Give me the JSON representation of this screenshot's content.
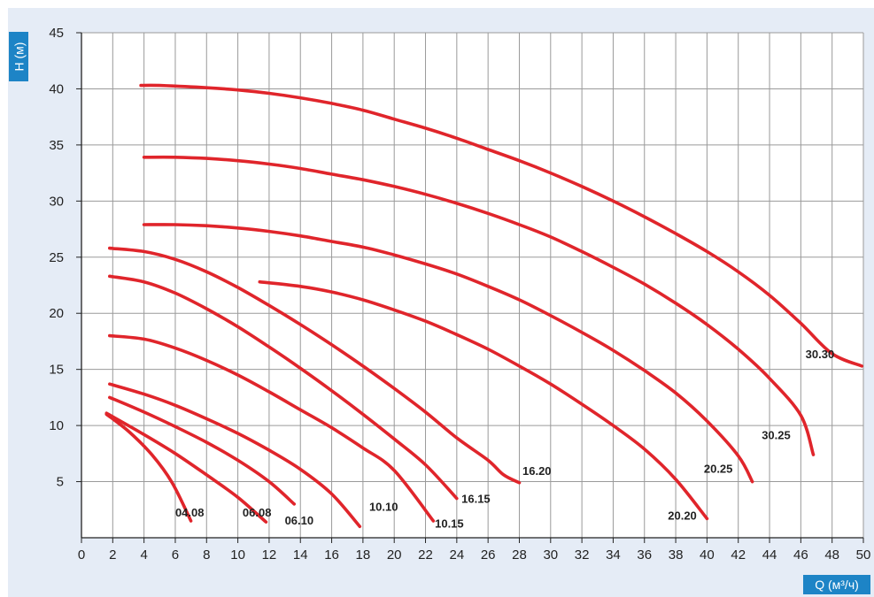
{
  "chart_data": {
    "type": "line",
    "xlabel": "Q (м³/ч)",
    "ylabel": "H (м)",
    "xlim": [
      0,
      50
    ],
    "ylim": [
      0,
      45
    ],
    "xticks": [
      "0",
      "2",
      "4",
      "6",
      "8",
      "10",
      "12",
      "14",
      "16",
      "18",
      "20",
      "22",
      "24",
      "26",
      "28",
      "30",
      "32",
      "34",
      "36",
      "38",
      "40",
      "42",
      "44",
      "46",
      "48",
      "50"
    ],
    "yticks": [
      "5",
      "10",
      "15",
      "20",
      "25",
      "30",
      "35",
      "40",
      "45"
    ],
    "grid": true,
    "line_color": "#e0252b",
    "series": [
      {
        "name": "04.08",
        "points": [
          [
            1.6,
            11.0
          ],
          [
            3.0,
            9.5
          ],
          [
            4.5,
            7.4
          ],
          [
            5.8,
            4.9
          ],
          [
            7.0,
            1.5
          ]
        ],
        "label_at": [
          6.0,
          1.9
        ]
      },
      {
        "name": "06.08",
        "points": [
          [
            1.6,
            11.1
          ],
          [
            4.0,
            9.2
          ],
          [
            6.0,
            7.5
          ],
          [
            8.0,
            5.6
          ],
          [
            10.0,
            3.6
          ],
          [
            11.8,
            1.4
          ]
        ],
        "label_at": [
          10.3,
          1.9
        ]
      },
      {
        "name": "06.10",
        "points": [
          [
            1.8,
            12.5
          ],
          [
            4.0,
            11.2
          ],
          [
            6.0,
            9.9
          ],
          [
            8.0,
            8.5
          ],
          [
            10.0,
            6.9
          ],
          [
            12.0,
            5.0
          ],
          [
            13.6,
            3.0
          ]
        ],
        "label_at": [
          13.0,
          1.2
        ]
      },
      {
        "name": "10.10",
        "points": [
          [
            1.8,
            13.7
          ],
          [
            4.0,
            12.8
          ],
          [
            6.0,
            11.8
          ],
          [
            8.0,
            10.6
          ],
          [
            10.0,
            9.3
          ],
          [
            12.0,
            7.8
          ],
          [
            14.0,
            6.1
          ],
          [
            16.0,
            3.9
          ],
          [
            17.8,
            1.0
          ]
        ],
        "label_at": [
          18.4,
          2.4
        ]
      },
      {
        "name": "10.15",
        "points": [
          [
            1.8,
            18.0
          ],
          [
            4.0,
            17.7
          ],
          [
            6.0,
            16.9
          ],
          [
            8.0,
            15.8
          ],
          [
            10.0,
            14.5
          ],
          [
            12.0,
            13.0
          ],
          [
            14.0,
            11.4
          ],
          [
            16.0,
            9.8
          ],
          [
            18.0,
            8.0
          ],
          [
            20.0,
            6.0
          ],
          [
            22.5,
            1.5
          ]
        ],
        "label_at": [
          22.6,
          0.9
        ]
      },
      {
        "name": "16.15",
        "points": [
          [
            1.8,
            23.3
          ],
          [
            4.0,
            22.8
          ],
          [
            6.0,
            21.8
          ],
          [
            8.0,
            20.4
          ],
          [
            10.0,
            18.8
          ],
          [
            12.0,
            17.0
          ],
          [
            14.0,
            15.1
          ],
          [
            16.0,
            13.1
          ],
          [
            18.0,
            11.0
          ],
          [
            20.0,
            8.8
          ],
          [
            22.0,
            6.5
          ],
          [
            24.0,
            3.5
          ]
        ],
        "label_at": [
          24.3,
          3.1
        ]
      },
      {
        "name": "16.20",
        "points": [
          [
            1.8,
            25.8
          ],
          [
            4.0,
            25.5
          ],
          [
            6.0,
            24.8
          ],
          [
            8.0,
            23.7
          ],
          [
            10.0,
            22.3
          ],
          [
            12.0,
            20.7
          ],
          [
            14.0,
            19.0
          ],
          [
            16.0,
            17.2
          ],
          [
            18.0,
            15.3
          ],
          [
            20.0,
            13.3
          ],
          [
            22.0,
            11.2
          ],
          [
            24.0,
            8.9
          ],
          [
            26.0,
            6.9
          ],
          [
            27.0,
            5.6
          ],
          [
            28.0,
            4.9
          ]
        ],
        "label_at": [
          28.2,
          5.6
        ]
      },
      {
        "name": "20.20",
        "points": [
          [
            11.4,
            22.8
          ],
          [
            14.0,
            22.4
          ],
          [
            16.0,
            21.9
          ],
          [
            18.0,
            21.2
          ],
          [
            20.0,
            20.3
          ],
          [
            22.0,
            19.3
          ],
          [
            24.0,
            18.1
          ],
          [
            26.0,
            16.8
          ],
          [
            28.0,
            15.3
          ],
          [
            30.0,
            13.7
          ],
          [
            32.0,
            11.9
          ],
          [
            34.0,
            10.0
          ],
          [
            36.0,
            7.9
          ],
          [
            38.0,
            5.2
          ],
          [
            40.0,
            1.7
          ]
        ],
        "label_at": [
          37.5,
          1.6
        ]
      },
      {
        "name": "20.25",
        "points": [
          [
            4.0,
            27.9
          ],
          [
            6.0,
            27.9
          ],
          [
            8.0,
            27.8
          ],
          [
            10.0,
            27.6
          ],
          [
            12.0,
            27.3
          ],
          [
            14.0,
            26.9
          ],
          [
            16.0,
            26.4
          ],
          [
            18.0,
            25.9
          ],
          [
            20.0,
            25.2
          ],
          [
            22.0,
            24.4
          ],
          [
            24.0,
            23.5
          ],
          [
            26.0,
            22.4
          ],
          [
            28.0,
            21.2
          ],
          [
            30.0,
            19.8
          ],
          [
            32.0,
            18.3
          ],
          [
            34.0,
            16.7
          ],
          [
            36.0,
            14.9
          ],
          [
            38.0,
            12.9
          ],
          [
            40.0,
            10.4
          ],
          [
            42.0,
            7.3
          ],
          [
            42.9,
            5.0
          ]
        ],
        "label_at": [
          39.8,
          5.8
        ]
      },
      {
        "name": "30.25",
        "points": [
          [
            4.0,
            33.9
          ],
          [
            6.0,
            33.9
          ],
          [
            8.0,
            33.8
          ],
          [
            10.0,
            33.6
          ],
          [
            12.0,
            33.3
          ],
          [
            14.0,
            32.9
          ],
          [
            16.0,
            32.4
          ],
          [
            18.0,
            31.9
          ],
          [
            20.0,
            31.3
          ],
          [
            22.0,
            30.6
          ],
          [
            24.0,
            29.8
          ],
          [
            26.0,
            28.9
          ],
          [
            28.0,
            27.9
          ],
          [
            30.0,
            26.8
          ],
          [
            32.0,
            25.5
          ],
          [
            34.0,
            24.1
          ],
          [
            36.0,
            22.6
          ],
          [
            38.0,
            20.9
          ],
          [
            40.0,
            19.0
          ],
          [
            42.0,
            16.8
          ],
          [
            44.0,
            14.2
          ],
          [
            46.0,
            10.9
          ],
          [
            46.8,
            7.4
          ]
        ],
        "label_at": [
          43.5,
          8.8
        ]
      },
      {
        "name": "30.30",
        "points": [
          [
            3.8,
            40.3
          ],
          [
            5.0,
            40.3
          ],
          [
            8.0,
            40.1
          ],
          [
            10.0,
            39.9
          ],
          [
            12.0,
            39.6
          ],
          [
            14.0,
            39.2
          ],
          [
            16.0,
            38.7
          ],
          [
            18.0,
            38.1
          ],
          [
            20.0,
            37.3
          ],
          [
            22.0,
            36.5
          ],
          [
            24.0,
            35.6
          ],
          [
            26.0,
            34.6
          ],
          [
            28.0,
            33.6
          ],
          [
            30.0,
            32.5
          ],
          [
            32.0,
            31.3
          ],
          [
            34.0,
            30.0
          ],
          [
            36.0,
            28.6
          ],
          [
            38.0,
            27.1
          ],
          [
            40.0,
            25.5
          ],
          [
            42.0,
            23.7
          ],
          [
            44.0,
            21.6
          ],
          [
            46.0,
            19.1
          ],
          [
            48.0,
            16.4
          ],
          [
            49.9,
            15.3
          ]
        ],
        "label_at": [
          46.3,
          16.0
        ]
      }
    ]
  }
}
